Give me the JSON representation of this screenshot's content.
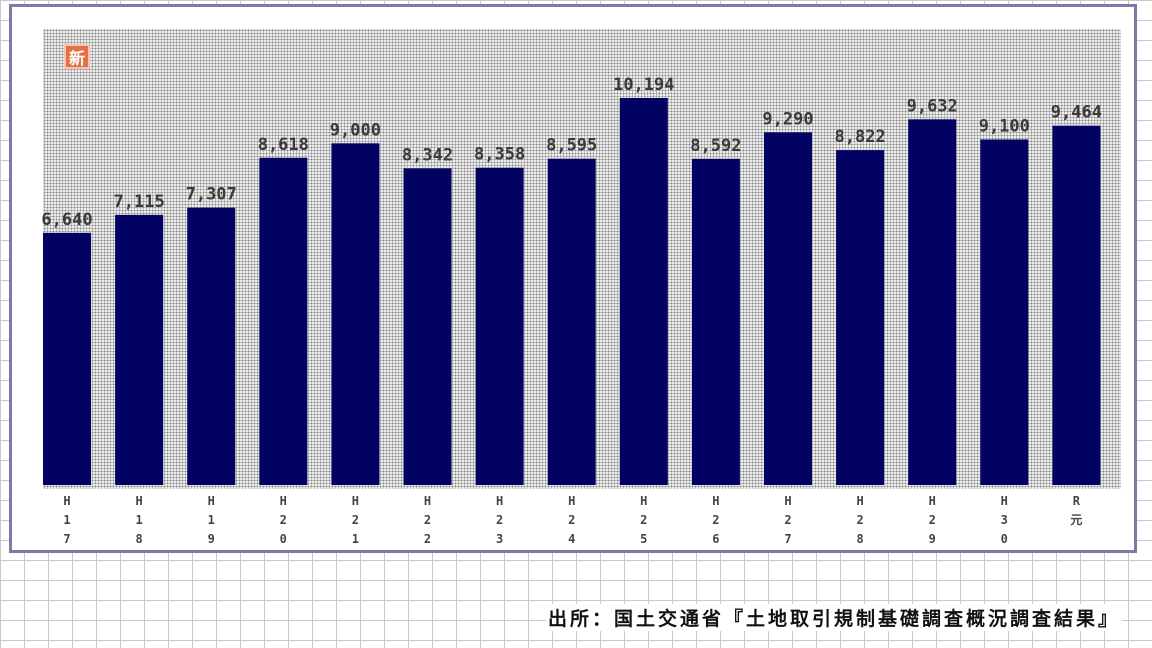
{
  "badge": {
    "text": "新"
  },
  "source_note": "出所：国土交通省『土地取引規制基礎調査概況調査結果』",
  "colors": {
    "bar": "#020263",
    "frame": "#7e7aa8",
    "badge": "#e0724a"
  },
  "chart_data": {
    "type": "bar",
    "categories": [
      "H17",
      "H18",
      "H19",
      "H20",
      "H21",
      "H22",
      "H23",
      "H24",
      "H25",
      "H26",
      "H27",
      "H28",
      "H29",
      "H30",
      "R元"
    ],
    "category_lines": [
      [
        "H",
        "1",
        "7"
      ],
      [
        "H",
        "1",
        "8"
      ],
      [
        "H",
        "1",
        "9"
      ],
      [
        "H",
        "2",
        "0"
      ],
      [
        "H",
        "2",
        "1"
      ],
      [
        "H",
        "2",
        "2"
      ],
      [
        "H",
        "2",
        "3"
      ],
      [
        "H",
        "2",
        "4"
      ],
      [
        "H",
        "2",
        "5"
      ],
      [
        "H",
        "2",
        "6"
      ],
      [
        "H",
        "2",
        "7"
      ],
      [
        "H",
        "2",
        "8"
      ],
      [
        "H",
        "2",
        "9"
      ],
      [
        "H",
        "3",
        "0"
      ],
      [
        "R",
        "元"
      ]
    ],
    "values": [
      6640,
      7115,
      7307,
      8618,
      9000,
      8342,
      8358,
      8595,
      10194,
      8592,
      9290,
      8822,
      9632,
      9100,
      9464
    ],
    "value_labels": [
      "6,640",
      "7,115",
      "7,307",
      "8,618",
      "9,000",
      "8,342",
      "8,358",
      "8,595",
      "10,194",
      "8,592",
      "9,290",
      "8,822",
      "9,632",
      "9,100",
      "9,464"
    ],
    "title": "",
    "xlabel": "",
    "ylabel": "",
    "ylim": [
      0,
      11000
    ],
    "grid": false,
    "legend": "none"
  }
}
